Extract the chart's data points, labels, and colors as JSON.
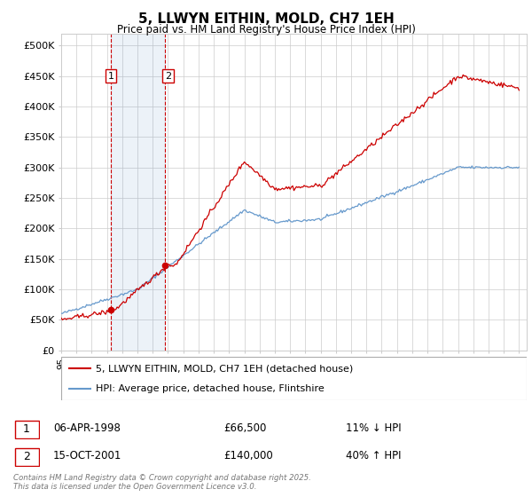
{
  "title": "5, LLWYN EITHIN, MOLD, CH7 1EH",
  "subtitle": "Price paid vs. HM Land Registry's House Price Index (HPI)",
  "legend_line1": "5, LLWYN EITHIN, MOLD, CH7 1EH (detached house)",
  "legend_line2": "HPI: Average price, detached house, Flintshire",
  "transaction1_date": "06-APR-1998",
  "transaction1_price": "£66,500",
  "transaction1_hpi": "11% ↓ HPI",
  "transaction2_date": "15-OCT-2001",
  "transaction2_price": "£140,000",
  "transaction2_hpi": "40% ↑ HPI",
  "footnote": "Contains HM Land Registry data © Crown copyright and database right 2025.\nThis data is licensed under the Open Government Licence v3.0.",
  "red_color": "#cc0000",
  "blue_color": "#6699cc",
  "grid_color": "#cccccc",
  "background_color": "#ffffff",
  "ylim": [
    0,
    520000
  ],
  "ytick_step": 50000
}
